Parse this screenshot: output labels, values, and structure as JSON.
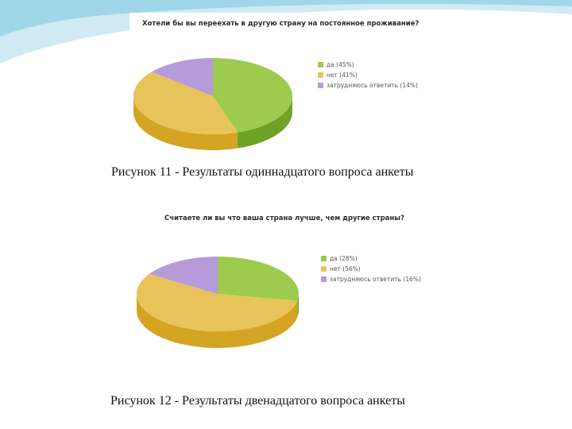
{
  "colors": {
    "yes": "#9ccb4e",
    "yes_side": "#6fa325",
    "no": "#e8c35a",
    "no_side": "#d4a423",
    "hard": "#b69ad9",
    "hard_side": "#8e6fbd",
    "deco_light": "#cfeaf3",
    "deco_mid": "#9fd6e8"
  },
  "chart_data": [
    {
      "type": "pie",
      "title": "Хотели бы вы переехать в другую страну на постоянное проживание?",
      "legend_position": "right",
      "slices": [
        {
          "label": "да (45%)",
          "value": 45,
          "color_key": "yes"
        },
        {
          "label": "нет (41%)",
          "value": 41,
          "color_key": "no"
        },
        {
          "label": "затрудняюсь ответить (14%)",
          "value": 14,
          "color_key": "hard"
        }
      ],
      "caption": "Рисунок 11 - Результаты одиннадцатого вопроса анкеты"
    },
    {
      "type": "pie",
      "title": "Считаете ли вы что ваша страна лучше, чем другие страны?",
      "legend_position": "right",
      "slices": [
        {
          "label": "да (28%)",
          "value": 28,
          "color_key": "yes"
        },
        {
          "label": "нет (56%)",
          "value": 56,
          "color_key": "no"
        },
        {
          "label": "затрудняюсь ответить (16%)",
          "value": 16,
          "color_key": "hard"
        }
      ],
      "caption": "Рисунок 12 - Результаты двенадцатого вопроса анкеты"
    }
  ]
}
